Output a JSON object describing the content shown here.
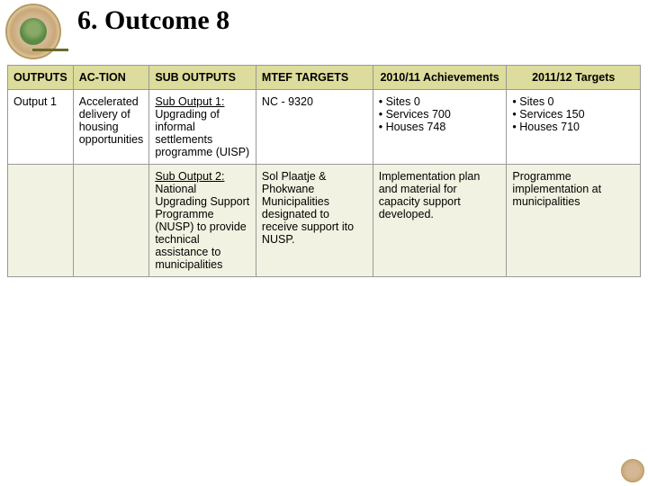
{
  "title": "6. Outcome 8",
  "columns": [
    {
      "label": "OUTPUTS",
      "cls": "hdr-a"
    },
    {
      "label": "AC-TION",
      "cls": "hdr-a"
    },
    {
      "label": "SUB OUTPUTS",
      "cls": "hdr-a"
    },
    {
      "label": "MTEF TARGETS",
      "cls": "hdr-a"
    },
    {
      "label": "2010/11 Achievements",
      "cls": "hdr-b"
    },
    {
      "label": "2011/12 Targets",
      "cls": "hdr-b"
    }
  ],
  "row1": {
    "outputs": "Output 1",
    "action": "Accelerated delivery of housing opportunities",
    "sub_head": "Sub Output 1:",
    "sub_body": "Upgrading of informal settlements programme (UISP)",
    "mtef": "NC  - 9320",
    "ach": [
      "Sites        0",
      "Services 700",
      "Houses   748"
    ],
    "tgt": [
      "Sites        0",
      "Services 150",
      "Houses   710"
    ]
  },
  "row2": {
    "sub_head": "Sub Output 2:",
    "sub_body": "National Upgrading Support Programme (NUSP) to provide technical assistance to municipalities",
    "mtef": "Sol Plaatje  & Phokwane Municipalities designated to receive support ito NUSP.",
    "ach": "Implementation plan and material for capacity support developed.",
    "tgt": "Programme implementation at municipalities"
  }
}
